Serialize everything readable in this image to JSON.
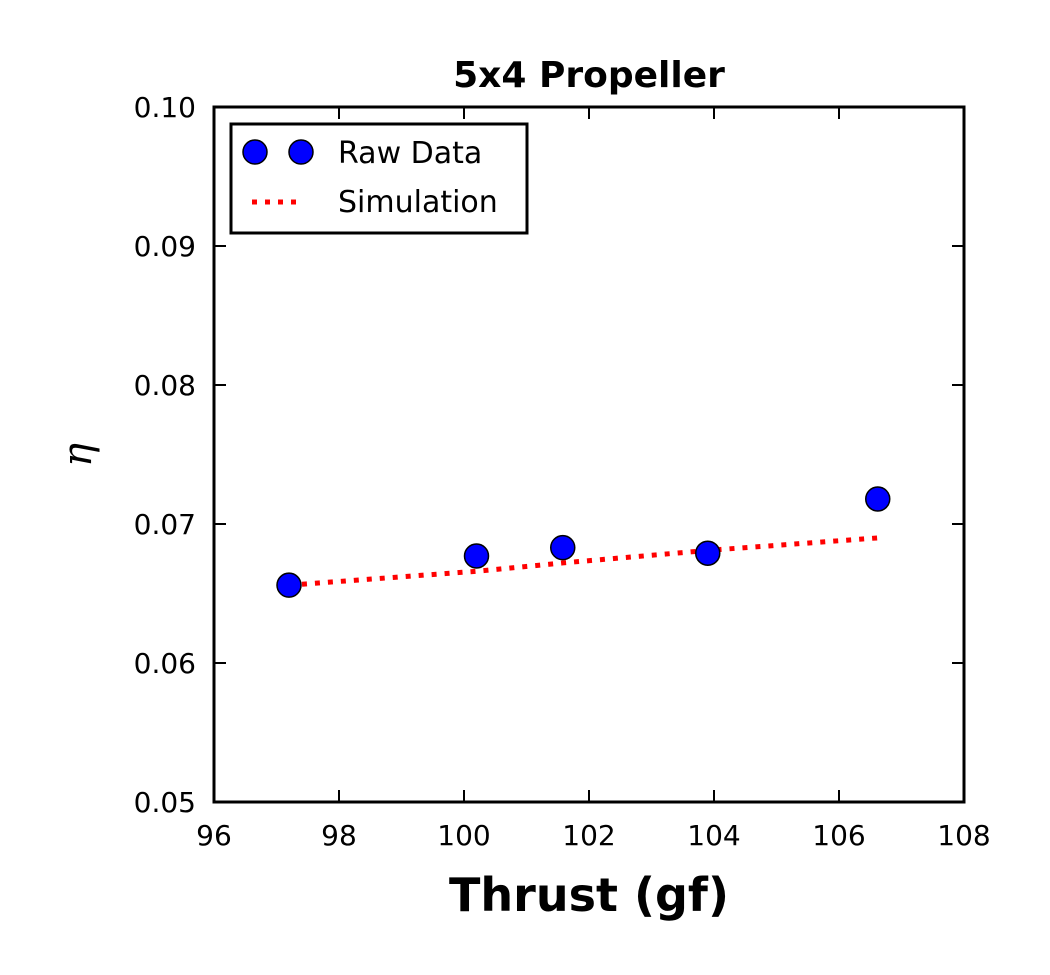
{
  "chart_data": {
    "type": "scatter",
    "title": "5x4 Propeller",
    "xlabel": "Thrust (gf)",
    "ylabel": "η",
    "xlim": [
      96,
      108
    ],
    "ylim": [
      0.05,
      0.1
    ],
    "xticks": [
      "96",
      "98",
      "100",
      "102",
      "104",
      "106",
      "108"
    ],
    "yticks": [
      "0.05",
      "0.06",
      "0.07",
      "0.08",
      "0.09",
      "0.10"
    ],
    "grid": false,
    "legend_position": "upper-left",
    "series": [
      {
        "name": "Raw Data",
        "kind": "scatter",
        "color": "#0000ff",
        "x": [
          97.2,
          100.2,
          101.58,
          103.9,
          106.62
        ],
        "y": [
          0.0656,
          0.0677,
          0.0683,
          0.0679,
          0.0718
        ]
      },
      {
        "name": "Simulation",
        "kind": "line",
        "style": "dotted",
        "color": "#ff0000",
        "x": [
          97.2,
          100.2,
          101.58,
          103.9,
          106.62
        ],
        "y": [
          0.0656,
          0.0666,
          0.0672,
          0.0681,
          0.069
        ]
      }
    ]
  }
}
